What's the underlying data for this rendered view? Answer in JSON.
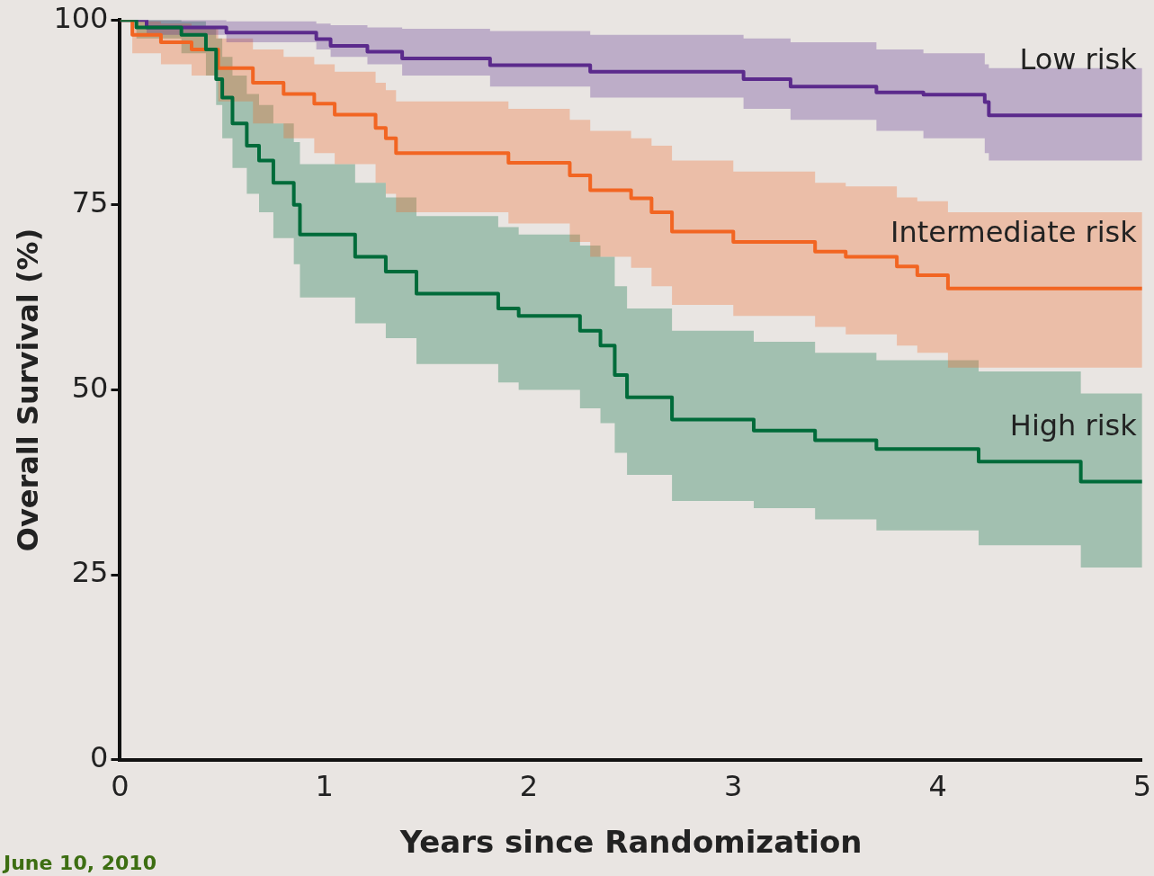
{
  "chart_data": {
    "type": "step",
    "xlabel": "Years since Randomization",
    "ylabel": "Overall Survival (%)",
    "xlim": [
      0,
      5
    ],
    "xticks": [
      0,
      1,
      2,
      3,
      4,
      5
    ],
    "ylim": [
      0,
      100
    ],
    "yticks": [
      0,
      25,
      50,
      75,
      100
    ],
    "grid": false,
    "legend": false,
    "annotations": [
      "June 10, 2010"
    ],
    "series": [
      {
        "name": "Low risk",
        "color": "#5b2a8c",
        "x": [
          0,
          0.13,
          0.52,
          0.96,
          1.03,
          1.21,
          1.38,
          1.81,
          2.3,
          3.05,
          3.28,
          3.7,
          3.93,
          4.23,
          4.25,
          5
        ],
        "values": [
          100,
          99,
          98.3,
          97.4,
          96.5,
          95.7,
          94.8,
          93.9,
          93,
          92,
          91,
          90.2,
          89.9,
          88.9,
          87.1,
          87.1
        ],
        "lower": [
          100,
          98,
          97,
          96,
          95,
          94,
          92.5,
          91,
          89.5,
          88,
          86.5,
          85,
          84,
          82,
          81,
          81
        ],
        "upper": [
          100,
          100,
          99.8,
          99.5,
          99.3,
          99,
          98.8,
          98.5,
          98,
          97.5,
          97,
          96,
          95.5,
          94,
          93.5,
          93.5
        ]
      },
      {
        "name": "Intermediate risk",
        "color": "#f26522",
        "x": [
          0,
          0.06,
          0.2,
          0.35,
          0.48,
          0.65,
          0.8,
          0.95,
          1.05,
          1.25,
          1.3,
          1.35,
          1.9,
          2.2,
          2.3,
          2.5,
          2.6,
          2.7,
          3.0,
          3.4,
          3.55,
          3.8,
          3.9,
          4.05,
          5
        ],
        "values": [
          100,
          98,
          97,
          96,
          93.5,
          91.5,
          90,
          88.7,
          87.2,
          85.4,
          84,
          82,
          80.7,
          79,
          77,
          75.9,
          74,
          71.4,
          70,
          68.7,
          68,
          66.7,
          65.5,
          63.7,
          63.7
        ],
        "lower": [
          100,
          95.5,
          94,
          92.5,
          89,
          86,
          84,
          82,
          80.5,
          78,
          76.5,
          74,
          72.5,
          70,
          68,
          66.5,
          64,
          61.5,
          60,
          58.5,
          57.5,
          56,
          55,
          53,
          53
        ],
        "upper": [
          100,
          99.8,
          99.5,
          99,
          97.5,
          96,
          95,
          94,
          93,
          91.5,
          90.5,
          89,
          88,
          86.5,
          85,
          84,
          83,
          81,
          79.5,
          78,
          77.5,
          76,
          75.5,
          74,
          74
        ]
      },
      {
        "name": "High risk",
        "color": "#006b3a",
        "x": [
          0,
          0.08,
          0.3,
          0.42,
          0.47,
          0.5,
          0.55,
          0.62,
          0.68,
          0.75,
          0.85,
          0.88,
          1.15,
          1.3,
          1.45,
          1.85,
          1.95,
          2.25,
          2.35,
          2.42,
          2.48,
          2.7,
          3.1,
          3.4,
          3.7,
          4.2,
          4.7,
          5
        ],
        "values": [
          100,
          99,
          98,
          96,
          92,
          89.5,
          86,
          83,
          81,
          78,
          75,
          71,
          68,
          66,
          63,
          61,
          60,
          58,
          56,
          52,
          49,
          46,
          44.5,
          43.2,
          42,
          40.3,
          37.6,
          37.6
        ],
        "lower": [
          100,
          97.5,
          95.5,
          92.5,
          88.5,
          84,
          80,
          76.5,
          74,
          70.5,
          67,
          62.5,
          59,
          57,
          53.5,
          51,
          50,
          47.5,
          45.5,
          41.5,
          38.5,
          35,
          34,
          32.5,
          31,
          29,
          26,
          26
        ],
        "upper": [
          100,
          100,
          99.8,
          99,
          97.5,
          95,
          92.5,
          90,
          88.5,
          86,
          83.5,
          80.5,
          78,
          76,
          73.5,
          72,
          71,
          69.5,
          68,
          64,
          61,
          58,
          56.5,
          55,
          54,
          52.5,
          49.5,
          49.5
        ]
      }
    ]
  }
}
